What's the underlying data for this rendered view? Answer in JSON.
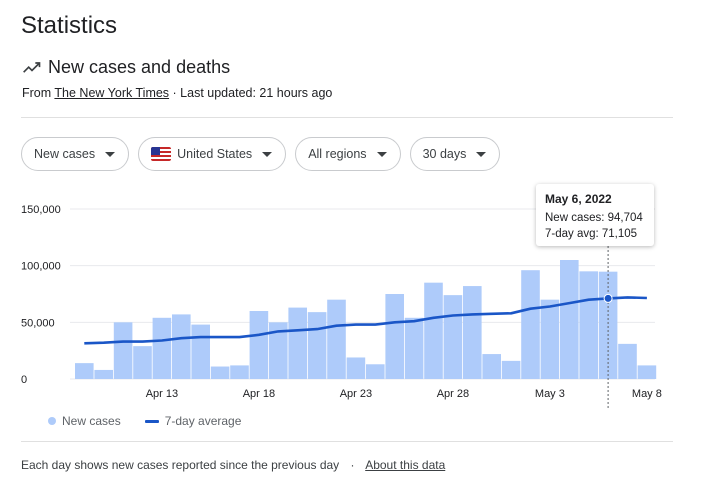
{
  "page": {
    "title": "Statistics"
  },
  "section": {
    "title": "New cases and deaths",
    "source_prefix": "From",
    "source_name": "The New York Times",
    "updated": "· Last updated: 21 hours ago"
  },
  "filters": [
    {
      "label": "New cases"
    },
    {
      "label": "United States",
      "flag": "us-flag-icon"
    },
    {
      "label": "All regions"
    },
    {
      "label": "30 days"
    }
  ],
  "tooltip": {
    "date": "May 6, 2022",
    "cases_line": "New cases: 94,704",
    "avg_line": "7-day avg: 71,105"
  },
  "legend": {
    "bars": "New cases",
    "line": "7-day average"
  },
  "footer": {
    "note": "Each day shows new cases reported since the previous day",
    "separator": "·",
    "link": "About this data"
  },
  "colors": {
    "bar": "#aecbfa",
    "line": "#1a56c7",
    "grid": "#e8eaed"
  },
  "chart_data": {
    "type": "bar",
    "categories": [
      "Apr 9",
      "Apr 10",
      "Apr 11",
      "Apr 12",
      "Apr 13",
      "Apr 14",
      "Apr 15",
      "Apr 16",
      "Apr 17",
      "Apr 18",
      "Apr 19",
      "Apr 20",
      "Apr 21",
      "Apr 22",
      "Apr 23",
      "Apr 24",
      "Apr 25",
      "Apr 26",
      "Apr 27",
      "Apr 28",
      "Apr 29",
      "Apr 30",
      "May 1",
      "May 2",
      "May 3",
      "May 4",
      "May 5",
      "May 6",
      "May 7",
      "May 8"
    ],
    "series": [
      {
        "name": "New cases",
        "type": "bar",
        "values": [
          14000,
          8000,
          50000,
          29000,
          54000,
          57000,
          48000,
          11000,
          12000,
          60000,
          50000,
          63000,
          59000,
          70000,
          19000,
          13000,
          75000,
          54000,
          85000,
          74000,
          82000,
          22000,
          16000,
          96000,
          70000,
          105000,
          95000,
          94704,
          31000,
          12000
        ]
      },
      {
        "name": "7-day average",
        "type": "line",
        "values": [
          31500,
          32000,
          33000,
          33000,
          34000,
          36000,
          37000,
          37000,
          37000,
          39000,
          42000,
          43000,
          44000,
          47000,
          48000,
          48000,
          50000,
          51000,
          54000,
          56000,
          57000,
          57500,
          58000,
          62000,
          64000,
          67000,
          70000,
          71105,
          72000,
          71500
        ]
      }
    ],
    "xticks": [
      "Apr 13",
      "Apr 18",
      "Apr 23",
      "Apr 28",
      "May 3",
      "May 8"
    ],
    "yticks": [
      "0",
      "50,000",
      "100,000",
      "150,000"
    ],
    "ylim": [
      0,
      150000
    ],
    "grid": true,
    "highlight_category": "May 6",
    "legend_position": "bottom-left"
  }
}
